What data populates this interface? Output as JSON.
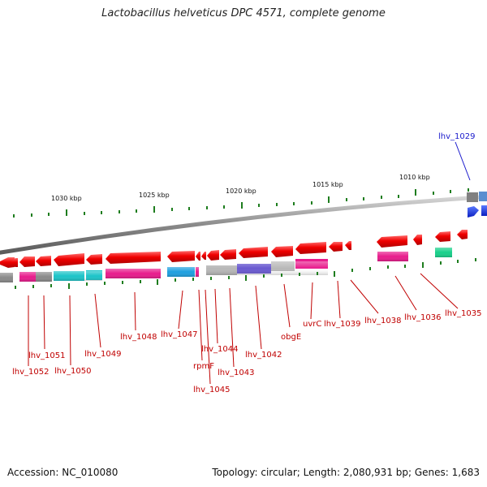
{
  "title": "Lactobacillus helveticus DPC 4571, complete genome",
  "accession": "Accession: NC_010080",
  "summary": "Topology: circular; Length: 2,080,931 bp; Genes: 1,683",
  "colors": {
    "backbone": "#8c8c8c",
    "gene": "#e8000a",
    "gene_highlight": "#1f3fe0",
    "tick": "#1e7d1e",
    "label_red": "#c00000",
    "label_blue": "#1a1acc",
    "cog_magenta": "#e81c8c",
    "cog_gray": "#8a8a8a",
    "cog_cyan": "#1cc4c8",
    "cog_blue": "#1ea0e0",
    "cog_lightgray": "#b8b8b8",
    "cog_purple": "#6a5ad0",
    "cog_green": "#18d08a",
    "cog_steel": "#5a8ed0"
  },
  "scale_labels": [
    "1030 kbp",
    "1025 kbp",
    "1020 kbp",
    "1015 kbp",
    "1010 kbp"
  ],
  "gene_labels": [
    {
      "name": "lhv_1029",
      "blue": true
    },
    {
      "name": "lhv_1035"
    },
    {
      "name": "lhv_1036"
    },
    {
      "name": "lhv_1038"
    },
    {
      "name": "lhv_1039"
    },
    {
      "name": "uvrC"
    },
    {
      "name": "obgE"
    },
    {
      "name": "lhv_1042"
    },
    {
      "name": "lhv_1043"
    },
    {
      "name": "lhv_1044"
    },
    {
      "name": "lhv_1045"
    },
    {
      "name": "rpmF"
    },
    {
      "name": "lhv_1047"
    },
    {
      "name": "lhv_1048"
    },
    {
      "name": "lhv_1049"
    },
    {
      "name": "lhv_1050"
    },
    {
      "name": "lhv_1051"
    },
    {
      "name": "lhv_1052"
    }
  ]
}
